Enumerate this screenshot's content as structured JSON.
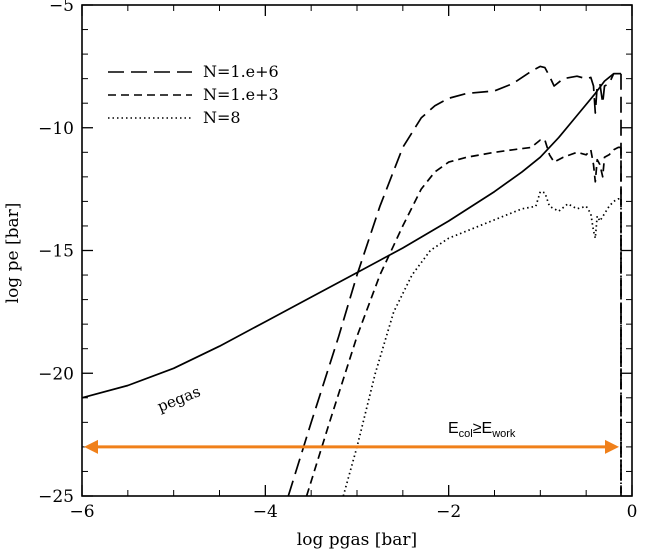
{
  "chart_data": {
    "type": "line",
    "title": "",
    "xlabel": "log pgas [bar]",
    "ylabel": "log pe [bar]",
    "xlim": [
      -6,
      0
    ],
    "ylim": [
      -25,
      -5
    ],
    "xticks": [
      -6,
      -4,
      -2,
      0
    ],
    "xtick_labels": [
      "−6",
      "−4",
      "−2",
      "0"
    ],
    "yticks": [
      -25,
      -20,
      -15,
      -10,
      -5
    ],
    "ytick_labels": [
      "−25",
      "−20",
      "−15",
      "−10",
      "−5"
    ],
    "legend_position": "top-left",
    "series": [
      {
        "name": "pegas",
        "style": "solid",
        "x": [
          -6.0,
          -5.5,
          -5.0,
          -4.5,
          -4.0,
          -3.5,
          -3.0,
          -2.5,
          -2.0,
          -1.5,
          -1.2,
          -1.0,
          -0.8,
          -0.6,
          -0.4,
          -0.3,
          -0.2,
          -0.15,
          -0.12
        ],
        "y": [
          -21.0,
          -20.5,
          -19.8,
          -18.9,
          -17.9,
          -16.9,
          -15.9,
          -14.9,
          -13.8,
          -12.6,
          -11.8,
          -11.2,
          -10.4,
          -9.5,
          -8.6,
          -8.1,
          -7.8,
          -7.8,
          -7.8
        ]
      },
      {
        "name": "N=1.e+6",
        "style": "long-dash",
        "x": [
          -3.75,
          -3.5,
          -3.2,
          -3.0,
          -2.75,
          -2.5,
          -2.3,
          -2.15,
          -2.0,
          -1.8,
          -1.5,
          -1.3,
          -1.1,
          -1.0,
          -0.95,
          -0.9,
          -0.85,
          -0.75,
          -0.6,
          -0.5,
          -0.45,
          -0.42,
          -0.4,
          -0.38,
          -0.35,
          -0.32,
          -0.3,
          -0.25,
          -0.2,
          -0.15,
          -0.12
        ],
        "y": [
          -25.0,
          -22.0,
          -18.5,
          -16.0,
          -13.2,
          -10.8,
          -9.6,
          -9.1,
          -8.8,
          -8.6,
          -8.5,
          -8.2,
          -7.7,
          -7.5,
          -7.55,
          -7.9,
          -8.3,
          -8.0,
          -7.9,
          -8.0,
          -7.95,
          -8.3,
          -9.4,
          -8.3,
          -8.2,
          -9.0,
          -8.3,
          -8.2,
          -7.8,
          -7.8,
          -7.8
        ]
      },
      {
        "name": "N=1.e+3",
        "style": "short-dash",
        "x": [
          -3.55,
          -3.3,
          -3.0,
          -2.75,
          -2.5,
          -2.3,
          -2.15,
          -2.0,
          -1.8,
          -1.5,
          -1.3,
          -1.1,
          -1.0,
          -0.95,
          -0.9,
          -0.85,
          -0.75,
          -0.6,
          -0.5,
          -0.45,
          -0.42,
          -0.4,
          -0.38,
          -0.35,
          -0.32,
          -0.3,
          -0.25,
          -0.2,
          -0.15,
          -0.12
        ],
        "y": [
          -25.0,
          -22.0,
          -18.5,
          -16.0,
          -14.0,
          -12.5,
          -11.8,
          -11.4,
          -11.2,
          -11.0,
          -10.9,
          -10.8,
          -10.5,
          -10.5,
          -11.1,
          -11.4,
          -11.2,
          -11.0,
          -11.1,
          -10.9,
          -11.5,
          -12.2,
          -11.3,
          -11.5,
          -12.0,
          -11.2,
          -11.1,
          -10.9,
          -10.8,
          -10.8
        ]
      },
      {
        "name": "N=8",
        "style": "dotted",
        "x": [
          -3.15,
          -3.0,
          -2.8,
          -2.6,
          -2.4,
          -2.2,
          -2.0,
          -1.8,
          -1.6,
          -1.4,
          -1.2,
          -1.05,
          -1.0,
          -0.95,
          -0.9,
          -0.8,
          -0.7,
          -0.6,
          -0.5,
          -0.45,
          -0.42,
          -0.4,
          -0.38,
          -0.35,
          -0.3,
          -0.25,
          -0.2,
          -0.15,
          -0.12
        ],
        "y": [
          -25.0,
          -23.0,
          -20.0,
          -17.5,
          -16.0,
          -15.0,
          -14.5,
          -14.2,
          -13.9,
          -13.6,
          -13.3,
          -13.2,
          -12.6,
          -12.65,
          -13.2,
          -13.4,
          -13.1,
          -13.3,
          -13.2,
          -13.5,
          -14.2,
          -14.5,
          -13.6,
          -13.8,
          -13.5,
          -13.2,
          -13.0,
          -12.9,
          -12.9
        ]
      }
    ],
    "annotations": {
      "curve_label": "pegas",
      "arrow": {
        "x_start": -6.0,
        "x_end": -0.12,
        "y": -23.0,
        "color": "#f0801a",
        "text_main_1": "E",
        "text_sub_1": "col",
        "text_rel": "≥",
        "text_main_2": "E",
        "text_sub_2": "work"
      }
    },
    "colors": {
      "lines": "#000000",
      "arrow": "#f0801a",
      "background": "#ffffff"
    }
  }
}
